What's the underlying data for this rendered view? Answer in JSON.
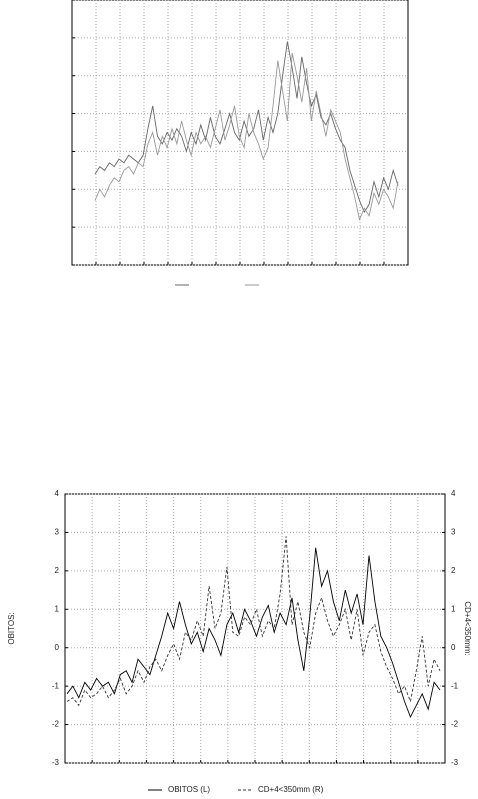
{
  "chart_data": [
    {
      "type": "line",
      "ylim": [
        -3,
        4
      ],
      "yticks": [
        -3,
        -2,
        -1,
        0,
        1,
        2,
        3,
        4
      ],
      "grid": true,
      "tick_labels": false,
      "series": [
        {
          "color": "#666666",
          "dash": false,
          "values": [
            -0.6,
            -0.4,
            -0.5,
            -0.3,
            -0.4,
            -0.2,
            -0.3,
            -0.1,
            -0.2,
            -0.3,
            -0.1,
            0.6,
            1.2,
            0.4,
            0.2,
            0.5,
            0.3,
            0.6,
            0.4,
            0.0,
            0.5,
            0.2,
            0.7,
            0.3,
            0.9,
            0.4,
            0.2,
            0.6,
            1.0,
            0.5,
            0.3,
            0.8,
            0.4,
            0.6,
            1.1,
            0.3,
            0.9,
            0.5,
            1.0,
            2.0,
            2.9,
            2.2,
            1.4,
            2.5,
            1.8,
            1.2,
            1.5,
            0.9,
            0.7,
            1.0,
            0.6,
            0.3,
            0.1,
            -0.5,
            -0.9,
            -1.3,
            -1.6,
            -1.4,
            -0.8,
            -1.2,
            -0.7,
            -1.0,
            -0.5,
            -0.9
          ]
        },
        {
          "color": "#999999",
          "dash": false,
          "values": [
            -1.3,
            -1.0,
            -1.2,
            -0.9,
            -0.7,
            -0.8,
            -0.5,
            -0.4,
            -0.6,
            -0.3,
            -0.4,
            0.2,
            0.5,
            -0.1,
            0.4,
            0.1,
            0.6,
            0.2,
            0.8,
            0.3,
            -0.1,
            0.5,
            0.2,
            0.4,
            0.1,
            0.6,
            1.1,
            0.3,
            0.7,
            1.2,
            0.4,
            0.1,
            1.0,
            0.5,
            0.2,
            -0.2,
            0.1,
            1.2,
            2.4,
            1.6,
            0.8,
            2.6,
            2.0,
            1.3,
            2.2,
            0.8,
            1.6,
            1.0,
            0.4,
            1.1,
            0.8,
            0.5,
            -0.2,
            -0.7,
            -1.2,
            -1.8,
            -1.5,
            -1.7,
            -1.1,
            -1.4,
            -1.0,
            -1.2,
            -1.5,
            -0.8
          ]
        }
      ]
    },
    {
      "type": "line",
      "ylabel": "OBITOS:",
      "y2label": "CD+4<350mm:",
      "ylim": [
        -3,
        4
      ],
      "yticks": [
        -3,
        -2,
        -1,
        0,
        1,
        2,
        3,
        4
      ],
      "y2lim": [
        -3,
        4
      ],
      "y2ticks": [
        -3,
        -2,
        -1,
        0,
        1,
        2,
        3,
        4
      ],
      "grid": true,
      "tick_labels": true,
      "series": [
        {
          "name": "OBITOS (L)",
          "color": "#000000",
          "dash": false,
          "values": [
            -1.2,
            -1.0,
            -1.3,
            -0.9,
            -1.1,
            -0.8,
            -1.0,
            -0.9,
            -1.2,
            -0.7,
            -0.6,
            -0.9,
            -0.3,
            -0.5,
            -0.7,
            -0.2,
            0.3,
            0.9,
            0.5,
            1.2,
            0.6,
            0.1,
            0.4,
            -0.1,
            0.5,
            0.2,
            -0.2,
            0.6,
            0.9,
            0.4,
            1.0,
            0.7,
            0.3,
            0.8,
            1.1,
            0.4,
            0.9,
            0.6,
            1.3,
            0.2,
            -0.6,
            0.8,
            2.6,
            1.6,
            2.0,
            1.2,
            0.7,
            1.5,
            0.9,
            1.4,
            0.6,
            2.4,
            1.2,
            0.3,
            0.0,
            -0.4,
            -0.9,
            -1.4,
            -1.8,
            -1.5,
            -1.2,
            -1.6,
            -0.9,
            -1.1
          ]
        },
        {
          "name": "CD+4<350mm (R)",
          "axis": "y2",
          "color": "#333333",
          "dash": true,
          "values": [
            -1.4,
            -1.3,
            -1.5,
            -1.1,
            -1.3,
            -1.2,
            -1.0,
            -1.3,
            -1.1,
            -0.8,
            -1.2,
            -1.0,
            -0.6,
            -0.9,
            -0.5,
            -0.3,
            -0.6,
            -0.2,
            0.1,
            -0.3,
            0.4,
            0.2,
            0.7,
            0.3,
            1.6,
            0.5,
            0.9,
            2.1,
            0.4,
            0.3,
            0.8,
            0.6,
            1.0,
            0.3,
            0.7,
            0.5,
            1.4,
            2.9,
            0.6,
            1.2,
            0.4,
            0.0,
            0.9,
            1.3,
            0.7,
            0.3,
            0.6,
            1.0,
            0.2,
            1.0,
            -0.2,
            0.4,
            0.6,
            -0.1,
            -0.5,
            -0.8,
            -1.2,
            -1.0,
            -1.4,
            -0.6,
            0.3,
            -1.0,
            -0.3,
            -0.6
          ]
        }
      ]
    }
  ]
}
